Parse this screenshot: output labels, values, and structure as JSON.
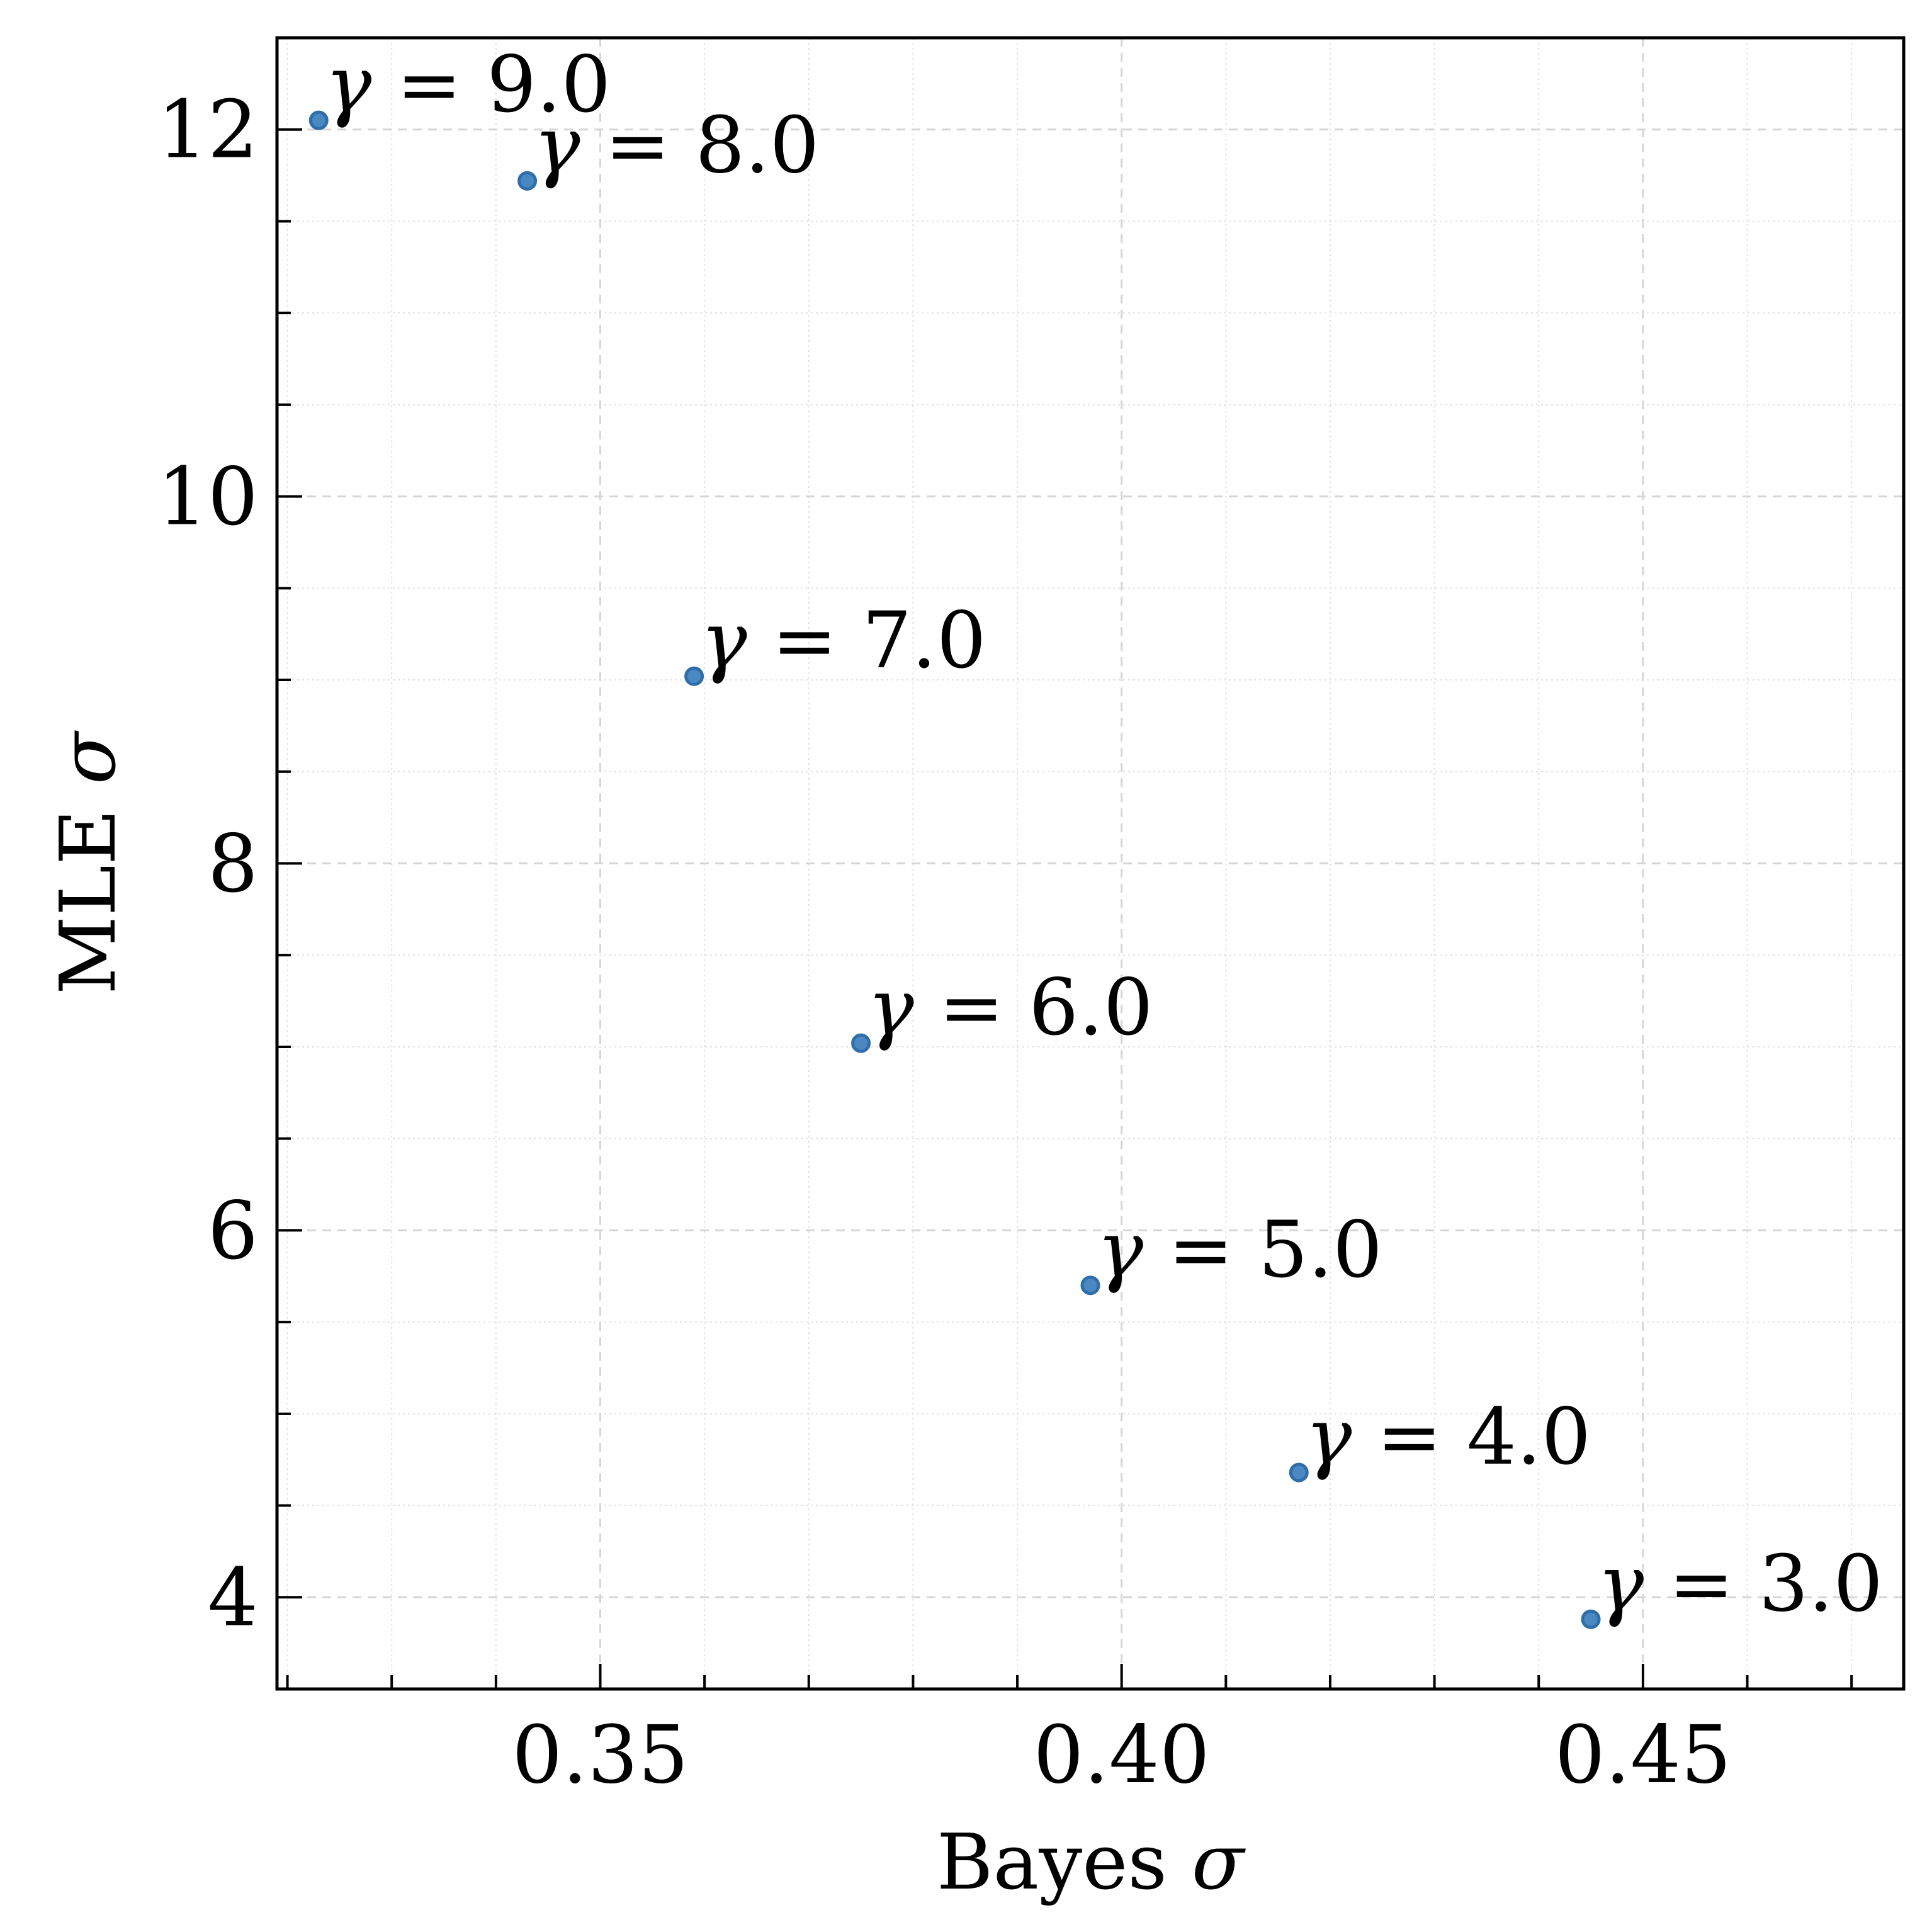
{
  "chart_data": {
    "type": "scatter",
    "xlabel": "Bayes σ",
    "ylabel": "MLE σ",
    "xlim": [
      0.319,
      0.475
    ],
    "ylim": [
      3.5,
      12.5
    ],
    "x_ticks": [
      0.35,
      0.4,
      0.45
    ],
    "x_tick_labels": [
      "0.35",
      "0.40",
      "0.45"
    ],
    "y_ticks": [
      4,
      6,
      8,
      10,
      12
    ],
    "y_tick_labels": [
      "4",
      "6",
      "8",
      "10",
      "12"
    ],
    "x_minor_step": 0.01,
    "y_minor_step": 0.5,
    "grid": true,
    "marker_color": "#4a88c2",
    "marker_edge_color": "#2f6ea8",
    "points": [
      {
        "x": 0.323,
        "y": 12.05,
        "label": "γ = 9.0"
      },
      {
        "x": 0.343,
        "y": 11.72,
        "label": "γ = 8.0"
      },
      {
        "x": 0.359,
        "y": 9.02,
        "label": "γ = 7.0"
      },
      {
        "x": 0.375,
        "y": 7.02,
        "label": "γ = 6.0"
      },
      {
        "x": 0.397,
        "y": 5.7,
        "label": "γ = 5.0"
      },
      {
        "x": 0.417,
        "y": 4.68,
        "label": "γ = 4.0"
      },
      {
        "x": 0.445,
        "y": 3.88,
        "label": "γ = 3.0"
      }
    ]
  }
}
